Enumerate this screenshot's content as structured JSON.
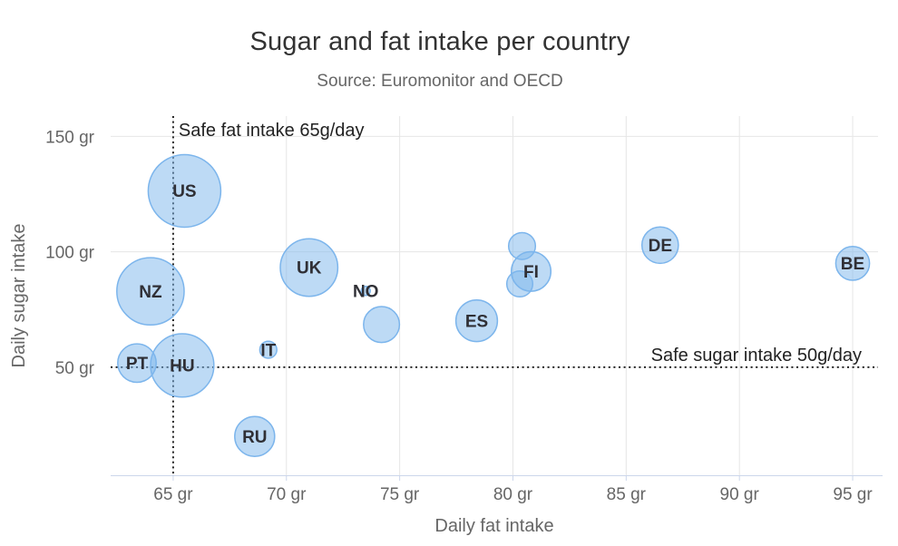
{
  "chart_data": {
    "type": "scatter",
    "subtype": "bubble",
    "title": "Sugar and fat intake per country",
    "subtitle": "Source: Euromonitor and OECD",
    "xlabel": "Daily fat intake",
    "ylabel": "Daily sugar intake",
    "xlim": [
      62.24,
      96.12
    ],
    "ylim": [
      3.2,
      158.8
    ],
    "grid": true,
    "legend": false,
    "x_ticks": [
      {
        "value": 65,
        "label": "65 gr"
      },
      {
        "value": 70,
        "label": "70 gr"
      },
      {
        "value": 75,
        "label": "75 gr"
      },
      {
        "value": 80,
        "label": "80 gr"
      },
      {
        "value": 85,
        "label": "85 gr"
      },
      {
        "value": 90,
        "label": "90 gr"
      },
      {
        "value": 95,
        "label": "95 gr"
      }
    ],
    "y_ticks": [
      {
        "value": 50,
        "label": "50 gr"
      },
      {
        "value": 100,
        "label": "100 gr"
      },
      {
        "value": 150,
        "label": "150 gr"
      }
    ],
    "plot_lines": [
      {
        "axis": "x",
        "value": 65,
        "label": "Safe fat intake 65g/day",
        "label_align": "start"
      },
      {
        "axis": "y",
        "value": 50,
        "label": "Safe sugar intake 50g/day",
        "label_align": "end"
      }
    ],
    "points": [
      {
        "label": "BE",
        "x": 95,
        "y": 95,
        "size": 13.8
      },
      {
        "label": "DE",
        "x": 86.5,
        "y": 102.9,
        "size": 14.7
      },
      {
        "label": "FI",
        "x": 80.8,
        "y": 91.5,
        "size": 15.8
      },
      {
        "label": "",
        "x": 80.4,
        "y": 102.5,
        "size": 12
      },
      {
        "label": "",
        "x": 80.3,
        "y": 86.1,
        "size": 11.8
      },
      {
        "label": "ES",
        "x": 78.4,
        "y": 70.1,
        "size": 16.6
      },
      {
        "label": "",
        "x": 74.2,
        "y": 68.5,
        "size": 14.5
      },
      {
        "label": "NO",
        "x": 73.5,
        "y": 83.1,
        "size": 10
      },
      {
        "label": "UK",
        "x": 71,
        "y": 93.2,
        "size": 24.7
      },
      {
        "label": "IT",
        "x": 69.2,
        "y": 57.6,
        "size": 10.4
      },
      {
        "label": "RU",
        "x": 68.6,
        "y": 20,
        "size": 16
      },
      {
        "label": "US",
        "x": 65.5,
        "y": 126.4,
        "size": 35.3
      },
      {
        "label": "HU",
        "x": 65.4,
        "y": 50.8,
        "size": 28.5
      },
      {
        "label": "PT",
        "x": 63.4,
        "y": 51.8,
        "size": 15.4
      },
      {
        "label": "NZ",
        "x": 64,
        "y": 82.9,
        "size": 31.3
      }
    ]
  },
  "colors": {
    "background": "#ffffff",
    "title_text": "#333333",
    "subtitle_text": "#666666",
    "axis_label_text": "#666666",
    "gridline": "#e6e6e6",
    "axis_line": "#ccd6eb",
    "bubble_fill": "#7cb5ec",
    "bubble_fill_opacity": 0.5,
    "bubble_stroke": "#7cb5ec",
    "data_label_text": "#2f2f35",
    "plotline": "#111111",
    "plotline_label_text": "#222222"
  }
}
